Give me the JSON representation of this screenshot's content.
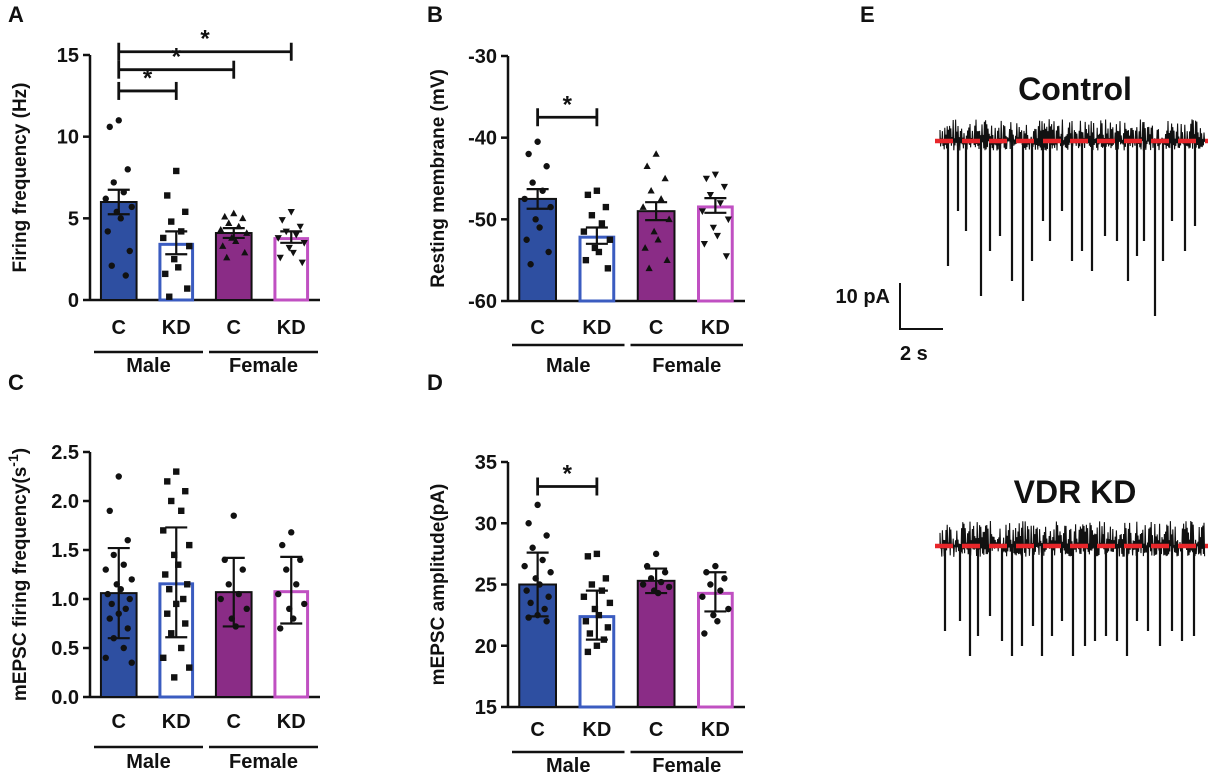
{
  "colors": {
    "male_c": "#2e4fa1",
    "male_kd": "#3b5cc0",
    "female_c": "#8a2c86",
    "female_kd": "#c050c2",
    "axis": "#111111",
    "baseline": "#e8262a",
    "trace": "#111111"
  },
  "panel_labels": {
    "A": "A",
    "B": "B",
    "C": "C",
    "D": "D",
    "E": "E"
  },
  "chart_data": [
    {
      "panel": "A",
      "type": "bar",
      "ylabel": "Firing frequency (Hz)",
      "ylim": [
        0,
        15
      ],
      "yticks": [
        0,
        5,
        10,
        15
      ],
      "ytick_labels": [
        "0",
        "5",
        "10",
        "15"
      ],
      "categories": [
        "C",
        "KD",
        "C",
        "KD"
      ],
      "groups": [
        {
          "name": "Male",
          "span": [
            0,
            1
          ]
        },
        {
          "name": "Female",
          "span": [
            2,
            3
          ]
        }
      ],
      "series": [
        {
          "name": "Male C",
          "mean": 6.0,
          "err": 0.75,
          "fill": "filled",
          "marker": "circle",
          "points": [
            11.0,
            10.6,
            8.0,
            7.2,
            6.6,
            6.2,
            5.7,
            5.4,
            5.0,
            4.2,
            3.0,
            2.1,
            1.5
          ]
        },
        {
          "name": "Male KD",
          "mean": 3.5,
          "err": 0.7,
          "fill": "open",
          "marker": "square",
          "points": [
            7.9,
            6.4,
            5.4,
            4.8,
            4.2,
            3.8,
            3.3,
            2.5,
            2.0,
            1.6,
            0.7,
            0.2
          ]
        },
        {
          "name": "Female C",
          "mean": 4.1,
          "err": 0.3,
          "fill": "filled",
          "marker": "triangle",
          "points": [
            5.3,
            5.1,
            5.0,
            4.7,
            4.5,
            4.3,
            4.1,
            3.8,
            3.6,
            3.3,
            2.9,
            2.6
          ]
        },
        {
          "name": "Female KD",
          "mean": 3.85,
          "err": 0.35,
          "fill": "open",
          "marker": "triangle-down",
          "points": [
            5.4,
            4.9,
            4.5,
            4.2,
            4.0,
            3.8,
            3.5,
            3.2,
            2.9,
            2.6,
            2.3
          ]
        }
      ],
      "significance": [
        {
          "from": 0,
          "to": 1,
          "y": 12.8,
          "label": "*"
        },
        {
          "from": 0,
          "to": 2,
          "y": 14.1,
          "label": "*"
        },
        {
          "from": 0,
          "to": 3,
          "y": 15.2,
          "label": "*"
        }
      ]
    },
    {
      "panel": "B",
      "type": "bar",
      "ylabel": "Resting membrane (mV)",
      "ylim": [
        -60,
        -30
      ],
      "yticks": [
        -60,
        -50,
        -40,
        -30
      ],
      "ytick_labels": [
        "-60",
        "-50",
        "-40",
        "-30"
      ],
      "categories": [
        "C",
        "KD",
        "C",
        "KD"
      ],
      "groups": [
        {
          "name": "Male",
          "span": [
            0,
            1
          ]
        },
        {
          "name": "Female",
          "span": [
            2,
            3
          ]
        }
      ],
      "series": [
        {
          "name": "Male C",
          "mean": -47.5,
          "err": 1.2,
          "fill": "filled",
          "marker": "circle",
          "points": [
            -40.5,
            -42.0,
            -43.5,
            -45.5,
            -46.5,
            -47.5,
            -48.5,
            -50.0,
            -51.0,
            -52.5,
            -54.0,
            -55.5
          ]
        },
        {
          "name": "Male KD",
          "mean": -52.0,
          "err": 1.0,
          "fill": "open",
          "marker": "square",
          "points": [
            -46.5,
            -47.0,
            -48.5,
            -49.5,
            -50.5,
            -51.5,
            -52.5,
            -53.5,
            -54.0,
            -55.0,
            -56.0
          ]
        },
        {
          "name": "Female C",
          "mean": -49.0,
          "err": 1.1,
          "fill": "filled",
          "marker": "triangle",
          "points": [
            -42.0,
            -43.5,
            -45.0,
            -46.5,
            -47.5,
            -48.5,
            -50.0,
            -51.5,
            -52.5,
            -53.5,
            -55.0,
            -56.0
          ]
        },
        {
          "name": "Female KD",
          "mean": -48.3,
          "err": 0.9,
          "fill": "open",
          "marker": "triangle-down",
          "points": [
            -44.5,
            -45.0,
            -46.0,
            -47.0,
            -48.0,
            -49.0,
            -50.0,
            -51.0,
            -52.0,
            -53.0,
            -54.5
          ]
        }
      ],
      "significance": [
        {
          "from": 0,
          "to": 1,
          "y": -37.5,
          "label": "*"
        }
      ]
    },
    {
      "panel": "C",
      "type": "bar",
      "ylabel": "mEPSC firing frequency(s",
      "ylabel_superscript": "-1",
      "ylabel_suffix": ")",
      "ylim": [
        0,
        2.5
      ],
      "yticks": [
        0,
        0.5,
        1.0,
        1.5,
        2.0,
        2.5
      ],
      "ytick_labels": [
        "0.0",
        "0.5",
        "1.0",
        "1.5",
        "2.0",
        "2.5"
      ],
      "categories": [
        "C",
        "KD",
        "C",
        "KD"
      ],
      "groups": [
        {
          "name": "Male",
          "span": [
            0,
            1
          ]
        },
        {
          "name": "Female",
          "span": [
            2,
            3
          ]
        }
      ],
      "series": [
        {
          "name": "Male C",
          "mean": 1.06,
          "err": 0.46,
          "fill": "filled",
          "marker": "circle",
          "points": [
            2.25,
            1.9,
            1.6,
            1.45,
            1.35,
            1.3,
            1.2,
            1.15,
            1.1,
            1.05,
            1.0,
            0.95,
            0.9,
            0.85,
            0.8,
            0.7,
            0.6,
            0.5,
            0.4,
            0.35
          ]
        },
        {
          "name": "Male KD",
          "mean": 1.17,
          "err": 0.56,
          "fill": "open",
          "marker": "square",
          "points": [
            2.3,
            2.2,
            2.1,
            2.0,
            1.9,
            1.7,
            1.55,
            1.45,
            1.35,
            1.25,
            1.15,
            1.1,
            1.0,
            0.95,
            0.85,
            0.75,
            0.65,
            0.5,
            0.4,
            0.3,
            0.2
          ]
        },
        {
          "name": "Female C",
          "mean": 1.07,
          "err": 0.35,
          "fill": "filled",
          "marker": "circle",
          "points": [
            1.85,
            1.4,
            1.3,
            1.15,
            1.05,
            1.0,
            0.9,
            0.8,
            0.72
          ]
        },
        {
          "name": "Female KD",
          "mean": 1.09,
          "err": 0.34,
          "fill": "open",
          "marker": "circle",
          "points": [
            1.68,
            1.55,
            1.4,
            1.3,
            1.15,
            1.05,
            0.95,
            0.9,
            0.8,
            0.7
          ]
        }
      ],
      "significance": []
    },
    {
      "panel": "D",
      "type": "bar",
      "ylabel": "mEPSC amplitude(pA)",
      "ylim": [
        15,
        35
      ],
      "yticks": [
        15,
        20,
        25,
        30,
        35
      ],
      "ytick_labels": [
        "15",
        "20",
        "25",
        "30",
        "35"
      ],
      "categories": [
        "C",
        "KD",
        "C",
        "KD"
      ],
      "groups": [
        {
          "name": "Male",
          "span": [
            0,
            1
          ]
        },
        {
          "name": "Female",
          "span": [
            2,
            3
          ]
        }
      ],
      "series": [
        {
          "name": "Male C",
          "mean": 25.0,
          "err": 2.6,
          "fill": "filled",
          "marker": "circle",
          "points": [
            31.5,
            30.0,
            29.0,
            28.0,
            27.0,
            26.5,
            26.0,
            25.5,
            25.0,
            24.5,
            24.0,
            23.5,
            23.0,
            22.5,
            22.3,
            22.0
          ]
        },
        {
          "name": "Male KD",
          "mean": 22.5,
          "err": 2.0,
          "fill": "open",
          "marker": "square",
          "points": [
            27.5,
            27.3,
            25.5,
            25.0,
            24.5,
            24.0,
            23.5,
            23.0,
            22.5,
            22.0,
            21.5,
            21.0,
            20.5,
            20.0,
            19.5
          ]
        },
        {
          "name": "Female C",
          "mean": 25.3,
          "err": 1.0,
          "fill": "filled",
          "marker": "circle",
          "points": [
            27.5,
            26.5,
            26.0,
            25.5,
            25.2,
            25.0,
            24.8,
            24.5,
            24.3
          ]
        },
        {
          "name": "Female KD",
          "mean": 24.4,
          "err": 1.6,
          "fill": "open",
          "marker": "circle",
          "points": [
            26.5,
            26.0,
            25.5,
            25.0,
            24.5,
            24.0,
            23.0,
            22.5,
            22.0,
            21.0
          ]
        }
      ],
      "significance": [
        {
          "from": 0,
          "to": 1,
          "y": 33.0,
          "label": "*"
        }
      ]
    }
  ],
  "traces": {
    "panel": "E",
    "control_title": "Control",
    "kd_title": "VDR KD",
    "scale_current": "10 pA",
    "scale_time": "2 s"
  }
}
